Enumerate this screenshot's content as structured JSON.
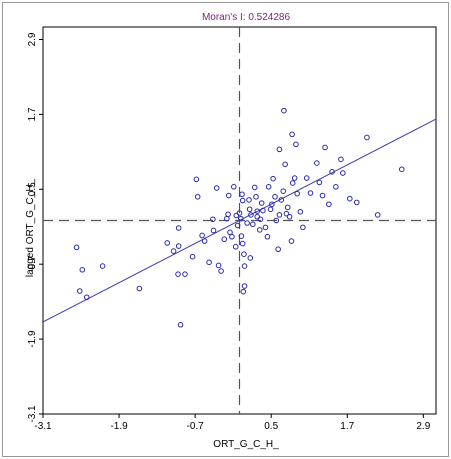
{
  "chart_data": {
    "type": "scatter",
    "title": "Moran's I: 0.524286",
    "xlabel": "ORT_G_C_H_",
    "ylabel": "lagged ORT_G_C_H_",
    "xlim": [
      -3.1,
      3.1
    ],
    "ylim": [
      -3.1,
      3.1
    ],
    "xticks": [
      "-3.1",
      "-1.9",
      "-0.7",
      "0.5",
      "1.7",
      "2.9"
    ],
    "yticks": [
      "-3.1",
      "-1.9",
      "-0.7",
      "0.5",
      "1.7",
      "2.9"
    ],
    "grid": false,
    "legend": "none",
    "colors": {
      "title": "#7a1f7a",
      "points": "#2b2ba8",
      "regression_line": "#3b3bb0",
      "reference_lines": "#555555",
      "frame": "#000000",
      "outer_border": "#999999"
    },
    "reference_lines": {
      "x": 0.0,
      "y": 0.0
    },
    "regression_line": {
      "slope": 0.524286,
      "intercept": 0.0
    },
    "points": [
      [
        -2.57,
        -0.43
      ],
      [
        -2.52,
        -1.13
      ],
      [
        -2.48,
        -0.79
      ],
      [
        -2.41,
        -1.23
      ],
      [
        -2.16,
        -0.73
      ],
      [
        -1.58,
        -1.09
      ],
      [
        -1.14,
        -0.36
      ],
      [
        -1.04,
        -0.49
      ],
      [
        -0.96,
        -0.41
      ],
      [
        -0.96,
        -0.12
      ],
      [
        -0.93,
        -1.67
      ],
      [
        -0.86,
        -0.86
      ],
      [
        -0.74,
        -0.58
      ],
      [
        -0.68,
        0.66
      ],
      [
        -0.59,
        -0.24
      ],
      [
        -0.48,
        -0.67
      ],
      [
        -0.41,
        -0.16
      ],
      [
        -0.42,
        0.02
      ],
      [
        -0.36,
        0.52
      ],
      [
        -0.33,
        -0.72
      ],
      [
        -0.29,
        -0.81
      ],
      [
        -0.24,
        -0.3
      ],
      [
        -0.2,
        0.03
      ],
      [
        -0.17,
        0.4
      ],
      [
        -0.15,
        -0.19
      ],
      [
        -0.12,
        -0.26
      ],
      [
        -0.09,
        0.54
      ],
      [
        -0.05,
        0.08
      ],
      [
        -0.03,
        -0.08
      ],
      [
        0.0,
        0.12
      ],
      [
        0.03,
        -0.25
      ],
      [
        0.04,
        0.42
      ],
      [
        0.05,
        0.32
      ],
      [
        0.02,
        0.03
      ],
      [
        0.07,
        -0.54
      ],
      [
        0.08,
        -0.73
      ],
      [
        0.08,
        -1.05
      ],
      [
        0.06,
        -1.14
      ],
      [
        0.05,
        -0.37
      ],
      [
        0.12,
        -0.04
      ],
      [
        0.15,
        0.33
      ],
      [
        0.16,
        0.18
      ],
      [
        0.18,
        0.09
      ],
      [
        0.21,
        -0.06
      ],
      [
        0.24,
        0.53
      ],
      [
        0.26,
        0.38
      ],
      [
        0.28,
        0.06
      ],
      [
        0.33,
        0.02
      ],
      [
        0.35,
        0.28
      ],
      [
        0.37,
        0.16
      ],
      [
        0.41,
        -0.11
      ],
      [
        0.44,
        -0.26
      ],
      [
        0.46,
        0.54
      ],
      [
        0.49,
        0.18
      ],
      [
        0.51,
        0.26
      ],
      [
        0.53,
        0.67
      ],
      [
        0.56,
        0.38
      ],
      [
        0.58,
        0.0
      ],
      [
        0.61,
        -0.46
      ],
      [
        0.63,
        0.09
      ],
      [
        0.66,
        0.33
      ],
      [
        0.69,
        0.47
      ],
      [
        0.72,
        0.9
      ],
      [
        0.74,
        0.11
      ],
      [
        0.76,
        0.21
      ],
      [
        0.79,
        0.06
      ],
      [
        0.82,
        -0.33
      ],
      [
        0.84,
        0.6
      ],
      [
        0.87,
        0.68
      ],
      [
        0.89,
        1.22
      ],
      [
        0.91,
        0.43
      ],
      [
        0.96,
        0.14
      ],
      [
        1.0,
        -0.11
      ],
      [
        1.06,
        0.68
      ],
      [
        1.12,
        0.44
      ],
      [
        1.22,
        0.92
      ],
      [
        1.31,
        0.4
      ],
      [
        1.35,
        1.17
      ],
      [
        1.41,
        0.26
      ],
      [
        1.52,
        0.54
      ],
      [
        1.63,
        0.76
      ],
      [
        1.74,
        0.35
      ],
      [
        1.85,
        0.29
      ],
      [
        2.01,
        1.33
      ],
      [
        2.18,
        0.09
      ],
      [
        2.56,
        0.82
      ],
      [
        1.46,
        0.78
      ],
      [
        1.6,
        0.98
      ],
      [
        0.83,
        1.38
      ],
      [
        0.7,
        1.76
      ],
      [
        0.63,
        1.14
      ],
      [
        0.32,
        -0.15
      ],
      [
        -0.06,
        -0.42
      ],
      [
        -0.55,
        -0.33
      ],
      [
        -0.66,
        0.38
      ],
      [
        -0.97,
        -0.86
      ],
      [
        0.17,
        -0.6
      ],
      [
        -0.18,
        0.1
      ],
      [
        0.28,
        0.15
      ],
      [
        1.26,
        0.61
      ]
    ]
  }
}
